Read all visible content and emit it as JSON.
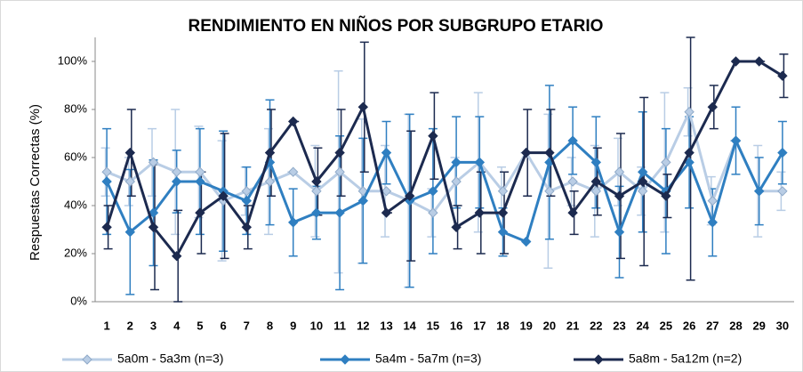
{
  "chart_data": {
    "type": "line",
    "title": "RENDIMIENTO EN NIÑOS POR SUBGRUPO ETARIO",
    "y_label": "Respuestas Correctas (%)",
    "categories": [
      "1",
      "2",
      "3",
      "4",
      "5",
      "6",
      "7",
      "8",
      "9",
      "10",
      "11",
      "12",
      "13",
      "14",
      "15",
      "16",
      "17",
      "18",
      "19",
      "20",
      "21",
      "22",
      "23",
      "24",
      "25",
      "26",
      "27",
      "28",
      "29",
      "30"
    ],
    "ylim": [
      0,
      110
    ],
    "yticks": [
      {
        "value": 0,
        "label": "0%"
      },
      {
        "value": 20,
        "label": "20%"
      },
      {
        "value": 40,
        "label": "40%"
      },
      {
        "value": 60,
        "label": "60%"
      },
      {
        "value": 80,
        "label": "80%"
      },
      {
        "value": 100,
        "label": "100%"
      }
    ],
    "legend": "bottom",
    "series": [
      {
        "name": "5a0m - 5a3m (n=3)",
        "color": "#b9cde5",
        "values": [
          54,
          50,
          58,
          54,
          54,
          42,
          46,
          50,
          54,
          46,
          54,
          46,
          46,
          42,
          37,
          50,
          58,
          46,
          62,
          46,
          50,
          46,
          54,
          46,
          58,
          79,
          42,
          67,
          46,
          46
        ],
        "errors": [
          10,
          10,
          14,
          26,
          19,
          25,
          10,
          22,
          0,
          19,
          42,
          30,
          19,
          36,
          10,
          10,
          29,
          10,
          0,
          32,
          10,
          19,
          14,
          10,
          29,
          10,
          10,
          0,
          19,
          8
        ]
      },
      {
        "name": "5a4m - 5a7m (n=3)",
        "color": "#2f7fc1",
        "values": [
          50,
          29,
          37,
          50,
          50,
          46,
          42,
          58,
          33,
          37,
          37,
          42,
          62,
          42,
          46,
          58,
          58,
          29,
          25,
          58,
          67,
          58,
          29,
          54,
          46,
          58,
          33,
          67,
          46,
          62
        ],
        "errors": [
          22,
          26,
          22,
          13,
          22,
          25,
          14,
          26,
          14,
          11,
          32,
          26,
          13,
          36,
          26,
          19,
          19,
          10,
          0,
          32,
          14,
          19,
          19,
          25,
          26,
          19,
          14,
          14,
          14,
          13
        ]
      },
      {
        "name": "5a8m - 5a12m (n=2)",
        "color": "#1c2a4f",
        "values": [
          31,
          62,
          31,
          19,
          37,
          44,
          31,
          62,
          75,
          50,
          62,
          81,
          37,
          44,
          69,
          31,
          37,
          37,
          62,
          62,
          37,
          50,
          44,
          50,
          44,
          62,
          81,
          100,
          100,
          94
        ],
        "errors": [
          9,
          18,
          26,
          19,
          17,
          26,
          9,
          18,
          0,
          14,
          18,
          27,
          0,
          27,
          18,
          9,
          17,
          17,
          18,
          18,
          9,
          14,
          26,
          35,
          9,
          53,
          9,
          0,
          0,
          9
        ]
      }
    ]
  }
}
